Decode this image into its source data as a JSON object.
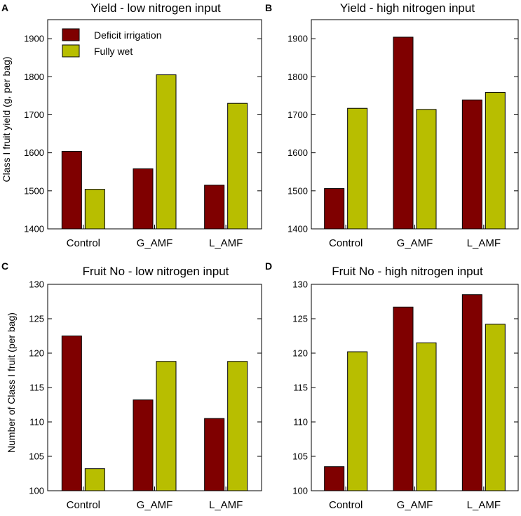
{
  "colors": {
    "deficit": "#7f0000",
    "fully_wet": "#b8be00",
    "axis": "#000000"
  },
  "legend": {
    "deficit_label": "Deficit irrigation",
    "wet_label": "Fully wet"
  },
  "chart_data": [
    {
      "type": "bar",
      "panel": "A",
      "title": "Yield - low nitrogen input",
      "ylabel": "Class I fruit yield (g, per bag)",
      "categories": [
        "Control",
        "G_AMF",
        "L_AMF"
      ],
      "ylim": [
        1400,
        1950
      ],
      "yticks": [
        1400,
        1500,
        1600,
        1700,
        1800,
        1900
      ],
      "series": [
        {
          "name": "Deficit irrigation",
          "values": [
            1604,
            1558,
            1515
          ]
        },
        {
          "name": "Fully wet",
          "values": [
            1504,
            1805,
            1730
          ]
        }
      ],
      "legend_position": "top-left"
    },
    {
      "type": "bar",
      "panel": "B",
      "title": "Yield - high nitrogen input",
      "ylabel": "",
      "categories": [
        "Control",
        "G_AMF",
        "L_AMF"
      ],
      "ylim": [
        1400,
        1950
      ],
      "yticks": [
        1400,
        1500,
        1600,
        1700,
        1800,
        1900
      ],
      "series": [
        {
          "name": "Deficit irrigation",
          "values": [
            1506,
            1904,
            1739
          ]
        },
        {
          "name": "Fully wet",
          "values": [
            1717,
            1714,
            1759
          ]
        }
      ]
    },
    {
      "type": "bar",
      "panel": "C",
      "title": "Fruit No - low nitrogen input",
      "ylabel": "Number of Class I fruit (per bag)",
      "categories": [
        "Control",
        "G_AMF",
        "L_AMF"
      ],
      "ylim": [
        100,
        130
      ],
      "yticks": [
        100,
        105,
        110,
        115,
        120,
        125,
        130
      ],
      "series": [
        {
          "name": "Deficit irrigation",
          "values": [
            122.5,
            113.2,
            110.5
          ]
        },
        {
          "name": "Fully wet",
          "values": [
            103.2,
            118.8,
            118.8
          ]
        }
      ]
    },
    {
      "type": "bar",
      "panel": "D",
      "title": "Fruit No - high nitrogen input",
      "ylabel": "",
      "categories": [
        "Control",
        "G_AMF",
        "L_AMF"
      ],
      "ylim": [
        100,
        130
      ],
      "yticks": [
        100,
        105,
        110,
        115,
        120,
        125,
        130
      ],
      "series": [
        {
          "name": "Deficit irrigation",
          "values": [
            103.5,
            126.7,
            128.5
          ]
        },
        {
          "name": "Fully wet",
          "values": [
            120.2,
            121.5,
            124.2
          ]
        }
      ]
    }
  ]
}
